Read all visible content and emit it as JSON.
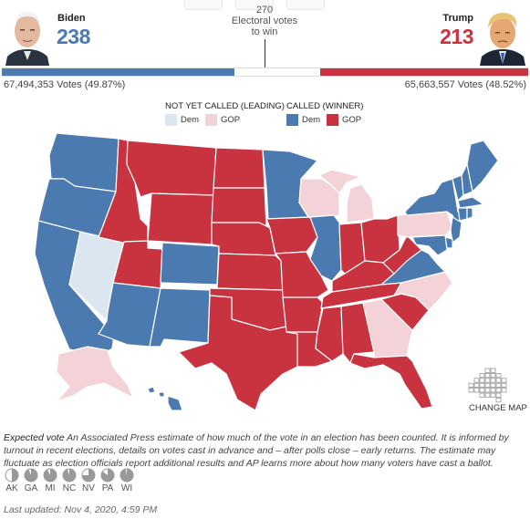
{
  "colors": {
    "dem": "#4a7ab0",
    "gop": "#c9323f",
    "dem_leaning": "#dce6f0",
    "gop_leaning": "#f3d3d7",
    "neutral": "#ffffff"
  },
  "header": {
    "dem": {
      "name": "Biden",
      "electoral_votes": "238",
      "popular_votes": "67,494,353 Votes (49.87%)"
    },
    "gop": {
      "name": "Trump",
      "electoral_votes": "213",
      "popular_votes": "65,663,557 Votes (48.52%)"
    },
    "threshold": {
      "number": "270",
      "label1": "Electoral votes",
      "label2": "to win"
    },
    "bar": {
      "dem_fraction": 0.4424,
      "gop_fraction": 0.3959,
      "total_votes": 538
    }
  },
  "legend": {
    "not_called": "NOT YET CALLED (LEADING)",
    "called": "CALLED (WINNER)",
    "dem": "Dem",
    "gop": "GOP"
  },
  "map": {
    "change_map_label": "CHANGE MAP",
    "states": {
      "WA": "dem",
      "OR": "dem",
      "CA": "dem",
      "NV": "dem_leaning",
      "ID": "gop",
      "MT": "gop",
      "WY": "gop",
      "UT": "gop",
      "AZ": "dem",
      "CO": "dem",
      "NM": "dem",
      "ND": "gop",
      "SD": "gop",
      "NE": "gop",
      "KS": "gop",
      "OK": "gop",
      "TX": "gop",
      "MN": "dem",
      "IA": "gop",
      "MO": "gop",
      "AR": "gop",
      "LA": "gop",
      "WI": "gop_leaning",
      "IL": "dem",
      "MI": "gop_leaning",
      "IN": "gop",
      "OH": "gop",
      "KY": "gop",
      "TN": "gop",
      "MS": "gop",
      "AL": "gop",
      "GA": "gop_leaning",
      "FL": "gop",
      "SC": "gop",
      "NC": "gop_leaning",
      "VA": "dem",
      "WV": "gop",
      "PA": "gop_leaning",
      "NY": "dem",
      "VT": "dem",
      "NH": "dem",
      "ME": "dem",
      "MA": "dem",
      "CT": "dem",
      "RI": "dem",
      "NJ": "dem",
      "DE": "dem",
      "MD": "dem",
      "AK": "gop_leaning",
      "HI": "dem"
    }
  },
  "note": {
    "term": "Expected vote",
    "text": " An Associated Press estimate of how much of the vote in an election has been counted. It is informed by turnout in recent elections, details on votes cast in advance and – after polls close – early returns. The estimate may fluctuate as election officials report additional results and AP learns more about how many voters have cast a ballot."
  },
  "expected_vote": [
    {
      "state": "AK",
      "fraction": 0.5
    },
    {
      "state": "GA",
      "fraction": 0.94
    },
    {
      "state": "MI",
      "fraction": 0.93
    },
    {
      "state": "NC",
      "fraction": 0.95
    },
    {
      "state": "NV",
      "fraction": 0.75
    },
    {
      "state": "PA",
      "fraction": 0.85
    },
    {
      "state": "WI",
      "fraction": 0.97
    }
  ],
  "last_updated": "Last updated: Nov 4, 2020, 4:59 PM"
}
